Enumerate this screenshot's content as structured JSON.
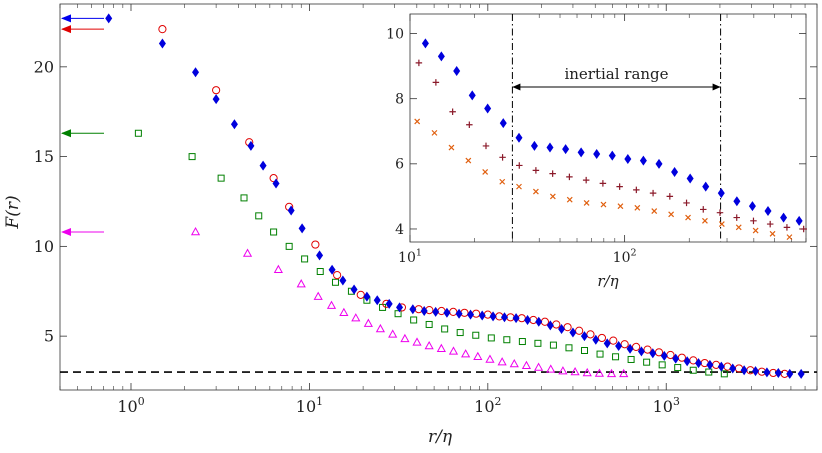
{
  "chart_data": [
    {
      "type": "scatter",
      "name": "main",
      "xscale": "log",
      "xlim": [
        0.4,
        7000
      ],
      "ylim": [
        2.0,
        23.5
      ],
      "xticks": [
        1,
        10,
        100,
        1000
      ],
      "xtick_labels": [
        {
          "base": "10",
          "exp": "0"
        },
        {
          "base": "10",
          "exp": "1"
        },
        {
          "base": "10",
          "exp": "2"
        },
        {
          "base": "10",
          "exp": "3"
        }
      ],
      "yticks": [
        5,
        10,
        15,
        20
      ],
      "ytick_labels": [
        "5",
        "10",
        "15",
        "20"
      ],
      "xlabel": "r/η",
      "ylabel": "F(r)",
      "reference_line": {
        "y": 3.0,
        "style": "dashed",
        "color": "#000000"
      },
      "arrows": [
        {
          "y": 22.7,
          "color": "#0000ee"
        },
        {
          "y": 22.1,
          "color": "#e00000"
        },
        {
          "y": 16.3,
          "color": "#008000"
        },
        {
          "y": 10.8,
          "color": "#ee00ee"
        }
      ],
      "series": [
        {
          "name": "diamond",
          "marker": "diamond",
          "color": "#0000dd",
          "x": [
            0.75,
            1.5,
            2.3,
            3.0,
            3.8,
            4.7,
            5.5,
            6.5,
            7.9,
            9.1,
            11.4,
            13.4,
            15.4,
            17.8,
            21,
            24,
            28,
            32,
            38,
            44,
            51,
            59,
            69,
            80,
            93,
            107,
            124,
            144,
            167,
            193,
            224,
            259,
            300,
            348,
            403,
            467,
            541,
            627,
            726,
            841,
            975,
            1130,
            1310,
            1517,
            1757,
            2036,
            2359,
            2733,
            3166,
            3668,
            4250,
            4924,
            5705
          ],
          "y": [
            22.7,
            21.3,
            19.7,
            18.2,
            16.8,
            15.6,
            14.5,
            13.5,
            12.0,
            11.0,
            9.5,
            8.7,
            8.1,
            7.6,
            7.2,
            7.0,
            6.8,
            6.6,
            6.5,
            6.4,
            6.35,
            6.3,
            6.25,
            6.2,
            6.15,
            6.1,
            6.05,
            6.0,
            5.9,
            5.8,
            5.6,
            5.4,
            5.2,
            5.0,
            4.8,
            4.6,
            4.45,
            4.3,
            4.15,
            4.05,
            3.9,
            3.75,
            3.6,
            3.5,
            3.4,
            3.3,
            3.2,
            3.1,
            3.05,
            2.98,
            2.95,
            2.9,
            2.9
          ]
        },
        {
          "name": "circle",
          "marker": "circle",
          "color": "#e00000",
          "x": [
            1.5,
            3.0,
            4.6,
            6.3,
            7.7,
            10.8,
            14.3,
            19.4,
            27,
            33,
            41,
            47,
            55,
            64,
            74,
            86,
            100,
            116,
            134,
            155,
            180,
            209,
            242,
            280,
            325,
            376,
            436,
            505,
            585,
            678,
            786,
            911,
            1056,
            1224,
            1418,
            1643,
            1904,
            2207,
            2557,
            2963,
            3434,
            3979,
            4610
          ],
          "y": [
            22.1,
            18.7,
            15.8,
            13.8,
            12.2,
            10.1,
            8.4,
            7.3,
            6.8,
            6.6,
            6.5,
            6.45,
            6.4,
            6.35,
            6.3,
            6.25,
            6.2,
            6.1,
            6.05,
            6.0,
            5.9,
            5.8,
            5.65,
            5.5,
            5.3,
            5.1,
            4.9,
            4.75,
            4.55,
            4.4,
            4.25,
            4.1,
            3.95,
            3.8,
            3.65,
            3.5,
            3.4,
            3.3,
            3.2,
            3.1,
            3.02,
            2.95,
            2.9
          ]
        },
        {
          "name": "square",
          "marker": "square",
          "color": "#008000",
          "x": [
            1.1,
            2.2,
            3.2,
            4.3,
            5.2,
            6.3,
            7.7,
            9.4,
            11.5,
            14,
            17.2,
            21,
            25.7,
            31.4,
            38.4,
            46.9,
            57.3,
            70,
            85.6,
            104.6,
            127.8,
            156.2,
            190.9,
            233.2,
            285,
            348.3,
            425.6,
            520,
            635.5,
            776.6,
            949,
            1159.7,
            1417.1,
            1731.8,
            2116.2
          ],
          "y": [
            16.3,
            15.0,
            13.8,
            12.7,
            11.7,
            10.8,
            10.0,
            9.3,
            8.6,
            8.0,
            7.5,
            7.0,
            6.6,
            6.25,
            5.9,
            5.65,
            5.4,
            5.2,
            5.05,
            4.9,
            4.8,
            4.7,
            4.6,
            4.5,
            4.35,
            4.2,
            4.0,
            3.85,
            3.7,
            3.55,
            3.4,
            3.25,
            3.1,
            3.0,
            2.9
          ]
        },
        {
          "name": "triangle",
          "marker": "triangle",
          "color": "#ee00ee",
          "x": [
            2.3,
            4.5,
            6.7,
            9.0,
            11.2,
            13.3,
            15.6,
            18.2,
            21.4,
            25,
            29.3,
            34.3,
            40.1,
            46.9,
            54.9,
            64.2,
            75.1,
            87.9,
            102.8,
            120.3,
            140.7,
            164.6,
            192.6,
            225.3,
            263.6,
            308.4,
            360.8,
            422.1,
            493.8,
            577.7
          ],
          "y": [
            10.8,
            9.6,
            8.7,
            7.9,
            7.2,
            6.7,
            6.3,
            6.0,
            5.7,
            5.4,
            5.1,
            4.85,
            4.65,
            4.45,
            4.3,
            4.15,
            4.0,
            3.85,
            3.7,
            3.55,
            3.45,
            3.35,
            3.25,
            3.15,
            3.05,
            3.0,
            2.95,
            2.92,
            2.9,
            2.9
          ]
        }
      ]
    },
    {
      "type": "scatter",
      "name": "inset",
      "xscale": "log",
      "xlim": [
        10,
        700
      ],
      "ylim": [
        3.6,
        10.6
      ],
      "xticks": [
        10,
        100
      ],
      "xtick_labels": [
        {
          "base": "10",
          "exp": "1"
        },
        {
          "base": "10",
          "exp": "2"
        }
      ],
      "yticks": [
        4,
        6,
        8,
        10
      ],
      "ytick_labels": [
        "4",
        "6",
        "8",
        "10"
      ],
      "xlabel": "r/η",
      "annotation": {
        "text": "inertial range",
        "x_start": 30,
        "x_end": 280
      },
      "vlines": [
        30,
        280
      ],
      "series": [
        {
          "name": "diamond",
          "marker": "diamond",
          "color": "#0000dd",
          "x": [
            11.8,
            14.0,
            16.5,
            19.5,
            23.0,
            27.2,
            32.2,
            38.0,
            44.9,
            53.1,
            62.7,
            74.1,
            87.6,
            103.5,
            122.3,
            144.6,
            170.9,
            202,
            238.7,
            282.1,
            333.4,
            394,
            465.6,
            550.3,
            650.4
          ],
          "y": [
            9.7,
            9.3,
            8.85,
            8.1,
            7.7,
            7.25,
            6.8,
            6.55,
            6.5,
            6.45,
            6.35,
            6.3,
            6.25,
            6.15,
            6.1,
            6.0,
            5.75,
            5.55,
            5.3,
            5.1,
            4.85,
            4.7,
            4.55,
            4.35,
            4.25
          ]
        },
        {
          "name": "plus",
          "marker": "plus",
          "color": "#8b1a2a",
          "x": [
            11.0,
            13.2,
            15.8,
            18.9,
            22.6,
            27.0,
            32.3,
            38.6,
            46.2,
            55.3,
            66.2,
            79.2,
            94.8,
            113.4,
            135.7,
            162.4,
            194.3,
            232.5,
            278.2,
            332.9,
            398.4,
            476.7,
            570.5,
            682.7
          ],
          "y": [
            9.1,
            8.5,
            7.6,
            7.2,
            6.55,
            6.2,
            5.95,
            5.8,
            5.7,
            5.6,
            5.5,
            5.4,
            5.3,
            5.2,
            5.1,
            5.0,
            4.8,
            4.6,
            4.5,
            4.35,
            4.25,
            4.15,
            4.05,
            4.0
          ]
        },
        {
          "name": "cross",
          "marker": "cross",
          "color": "#e06010",
          "x": [
            10.8,
            13.0,
            15.6,
            18.7,
            22.4,
            26.9,
            32.2,
            38.6,
            46.3,
            55.5,
            66.5,
            79.7,
            95.6,
            114.6,
            137.4,
            164.7,
            197.5,
            236.7,
            283.8,
            340.2,
            407.8,
            488.9,
            586.1,
            702.6
          ],
          "y": [
            7.3,
            6.95,
            6.5,
            6.1,
            5.75,
            5.45,
            5.3,
            5.15,
            5.0,
            4.9,
            4.8,
            4.75,
            4.7,
            4.65,
            4.55,
            4.45,
            4.35,
            4.25,
            4.15,
            4.05,
            3.95,
            3.85,
            3.75,
            3.7
          ]
        }
      ]
    }
  ]
}
